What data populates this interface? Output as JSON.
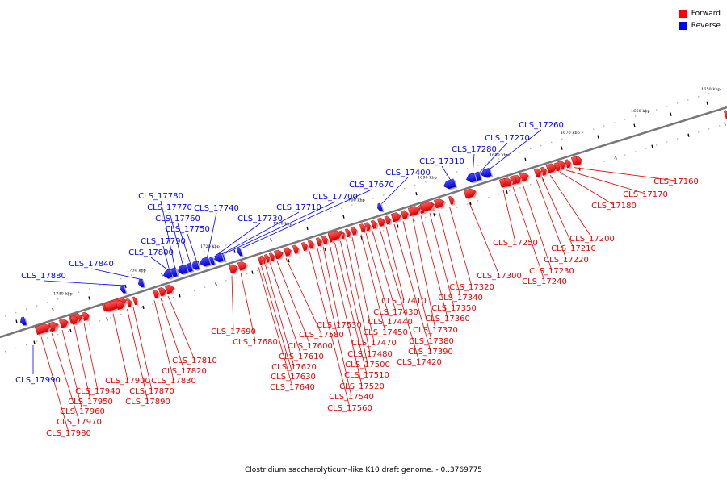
{
  "legend": [
    {
      "label": "Forward",
      "color": "#ff0000"
    },
    {
      "label": "Reverse",
      "color": "#0000ff"
    }
  ],
  "caption": "Clostridium saccharolyticum-like K10 draft genome. - 0..3769775",
  "colors": {
    "forward": "#ff0000",
    "reverse": "#0000ff",
    "backbone": "#777777"
  },
  "scale_labels": [
    "1650 kbp",
    "1660 kbp",
    "1670 kbp",
    "1680 kbp",
    "1690 kbp",
    "1700 kbp",
    "1710 kbp",
    "1720 kbp",
    "1730 kbp",
    "1740 kbp"
  ],
  "forward_genes": [
    "CLS_17160",
    "CLS_17170",
    "CLS_17180",
    "CLS_17200",
    "CLS_17210",
    "CLS_17220",
    "CLS_17230",
    "CLS_17240",
    "CLS_17250",
    "CLS_17300",
    "CLS_17320",
    "CLS_17340",
    "CLS_17350",
    "CLS_17360",
    "CLS_17370",
    "CLS_17380",
    "CLS_17390",
    "CLS_17410",
    "CLS_17420",
    "CLS_17430",
    "CLS_17440",
    "CLS_17450",
    "CLS_17470",
    "CLS_17480",
    "CLS_17500",
    "CLS_17510",
    "CLS_17520",
    "CLS_17530",
    "CLS_17540",
    "CLS_17560",
    "CLS_17580",
    "CLS_17600",
    "CLS_17610",
    "CLS_17620",
    "CLS_17630",
    "CLS_17640",
    "CLS_17680",
    "CLS_17690",
    "CLS_17810",
    "CLS_17820",
    "CLS_17830",
    "CLS_17870",
    "CLS_17890",
    "CLS_17900",
    "CLS_17940",
    "CLS_17950",
    "CLS_17960",
    "CLS_17970",
    "CLS_17980"
  ],
  "reverse_genes": [
    "CLS_17260",
    "CLS_17270",
    "CLS_17280",
    "CLS_17310",
    "CLS_17400",
    "CLS_17670",
    "CLS_17700",
    "CLS_17710",
    "CLS_17730",
    "CLS_17740",
    "CLS_17750",
    "CLS_17760",
    "CLS_17770",
    "CLS_17780",
    "CLS_17790",
    "CLS_17800",
    "CLS_17840",
    "CLS_17880",
    "CLS_17990"
  ]
}
